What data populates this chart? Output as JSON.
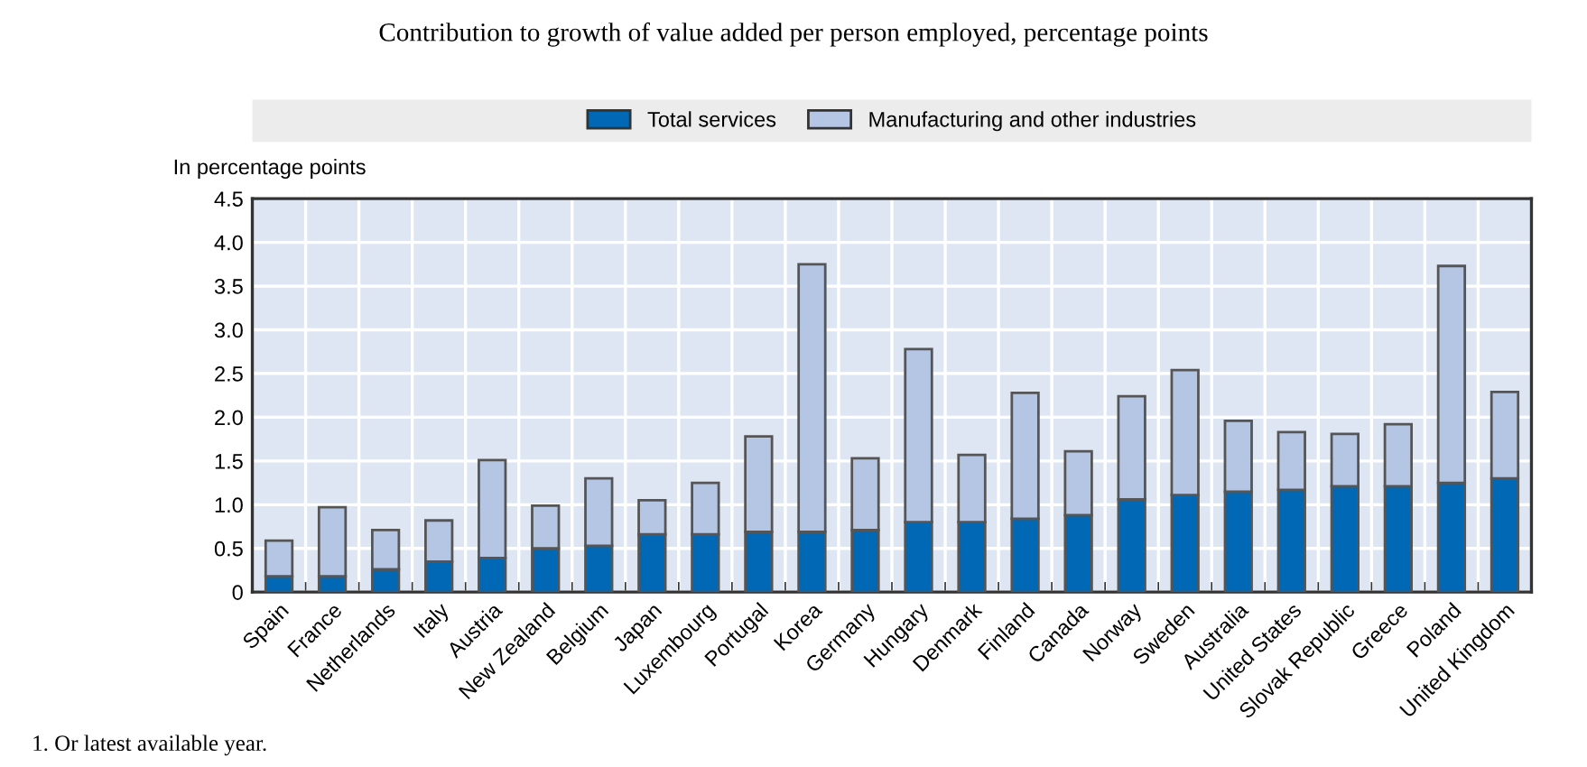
{
  "chart_data": {
    "type": "bar",
    "stacked": true,
    "title": "Contribution to growth of value added per person employed, percentage points",
    "ylabel": "In percentage points",
    "categories": [
      "Spain",
      "France",
      "Netherlands",
      "Italy",
      "Austria",
      "New Zealand",
      "Belgium",
      "Japan",
      "Luxembourg",
      "Portugal",
      "Korea",
      "Germany",
      "Hungary",
      "Denmark",
      "Finland",
      "Canada",
      "Norway",
      "Sweden",
      "Australia",
      "United States",
      "Slovak Republic",
      "Greece",
      "Poland",
      "United Kingdom"
    ],
    "series": [
      {
        "name": "Total services",
        "color": "#0068b4",
        "values": [
          0.18,
          0.18,
          0.26,
          0.35,
          0.39,
          0.5,
          0.53,
          0.66,
          0.66,
          0.69,
          0.69,
          0.71,
          0.8,
          0.8,
          0.84,
          0.88,
          1.06,
          1.11,
          1.15,
          1.17,
          1.21,
          1.21,
          1.25,
          1.3
        ]
      },
      {
        "name": "Manufacturing and other industries",
        "color": "#b4c6e4",
        "values": [
          0.41,
          0.79,
          0.45,
          0.47,
          1.12,
          0.49,
          0.77,
          0.39,
          0.59,
          1.09,
          3.06,
          0.82,
          1.98,
          0.77,
          1.44,
          0.73,
          1.18,
          1.43,
          0.81,
          0.66,
          0.6,
          0.71,
          2.48,
          0.99
        ]
      }
    ],
    "ylim": [
      0,
      4.5
    ],
    "yticks": [
      {
        "value": 0,
        "label": "0"
      },
      0.5,
      {
        "value": 1,
        "label": "1.0"
      },
      1.5,
      {
        "value": 2,
        "label": "2.0"
      },
      2.5,
      {
        "value": 3,
        "label": "3.0"
      },
      3.5,
      {
        "value": 4,
        "label": "4.0"
      },
      4.5
    ],
    "grid": true,
    "legend": "top",
    "annotations": [
      "1. Or latest available year."
    ]
  }
}
